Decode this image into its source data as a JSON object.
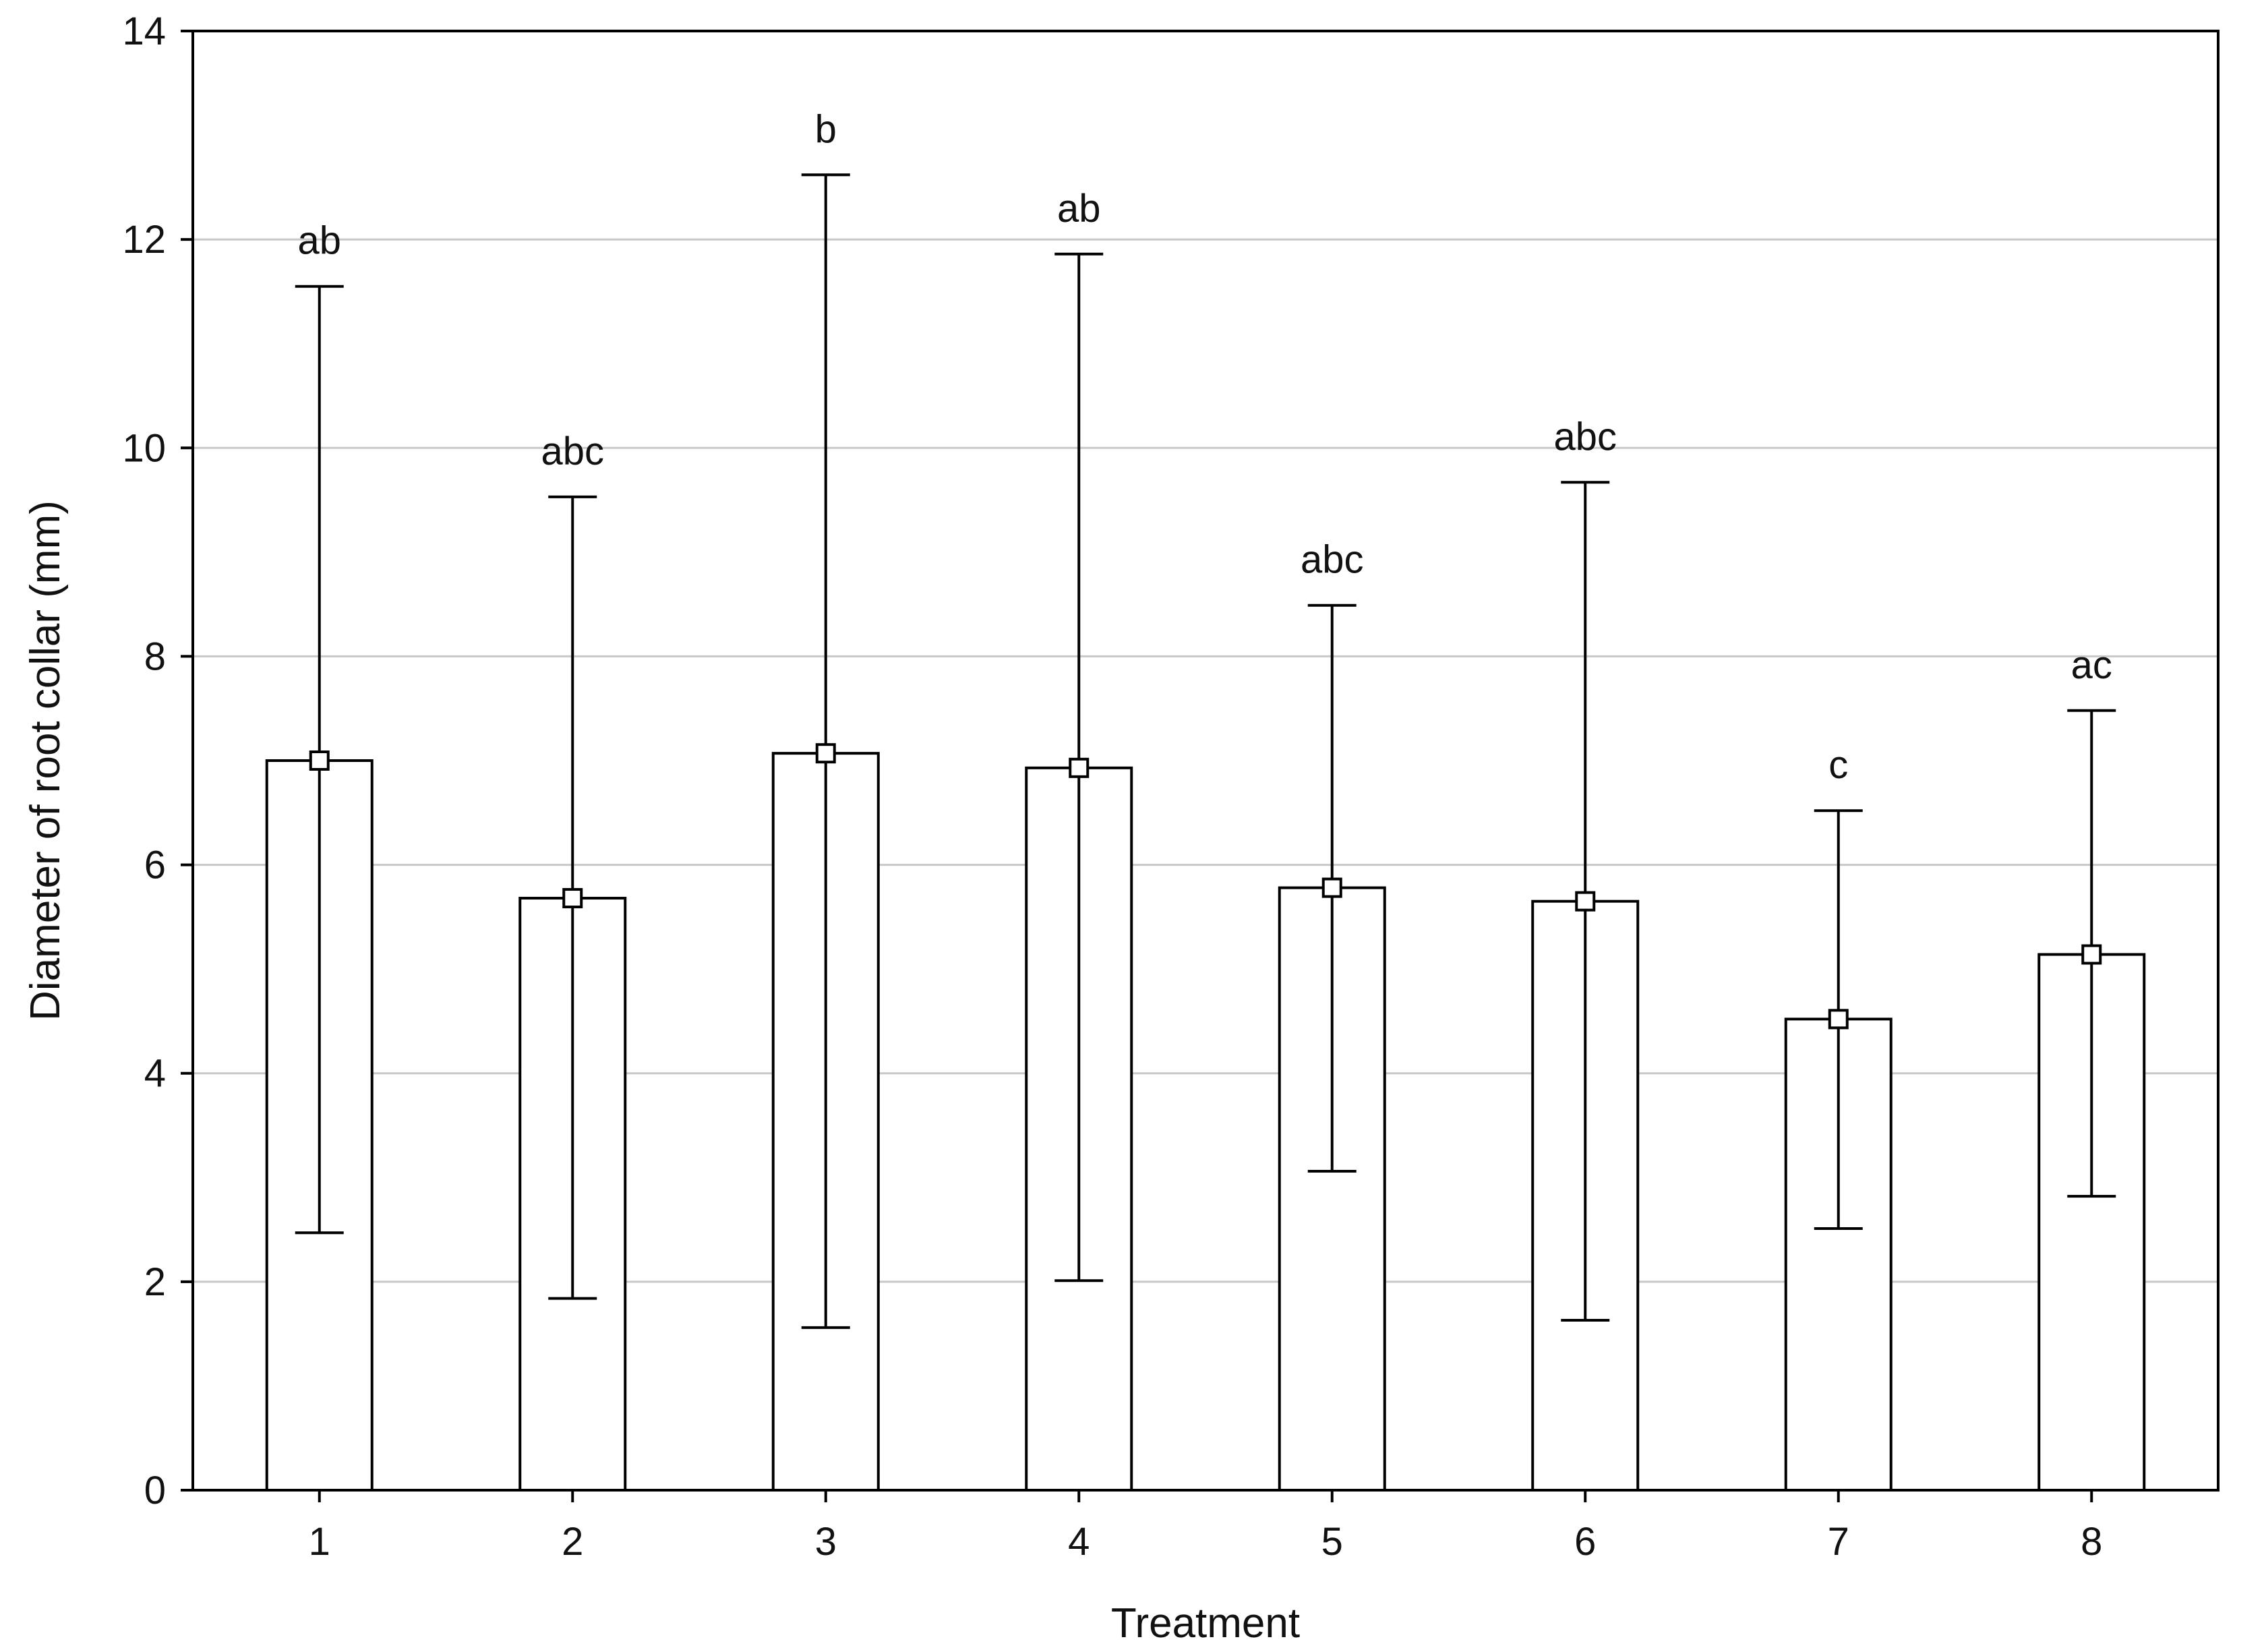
{
  "chart_data": {
    "type": "bar",
    "xlabel": "Treatment",
    "ylabel": "Diameter of root collar (mm)",
    "ylim": [
      0,
      14
    ],
    "yticks": [
      0,
      2,
      4,
      6,
      8,
      10,
      12,
      14
    ],
    "grid": true,
    "categories": [
      "1",
      "2",
      "3",
      "4",
      "5",
      "6",
      "7",
      "8"
    ],
    "values": [
      7.0,
      5.68,
      7.07,
      6.93,
      5.78,
      5.65,
      4.52,
      5.14
    ],
    "error_low": [
      2.47,
      1.84,
      1.56,
      2.01,
      3.06,
      1.63,
      2.51,
      2.82
    ],
    "error_high": [
      11.55,
      9.53,
      12.62,
      11.86,
      8.49,
      9.67,
      6.52,
      7.48
    ],
    "significance_labels": [
      "ab",
      "abc",
      "b",
      "ab",
      "abc",
      "abc",
      "c",
      "ac"
    ]
  }
}
